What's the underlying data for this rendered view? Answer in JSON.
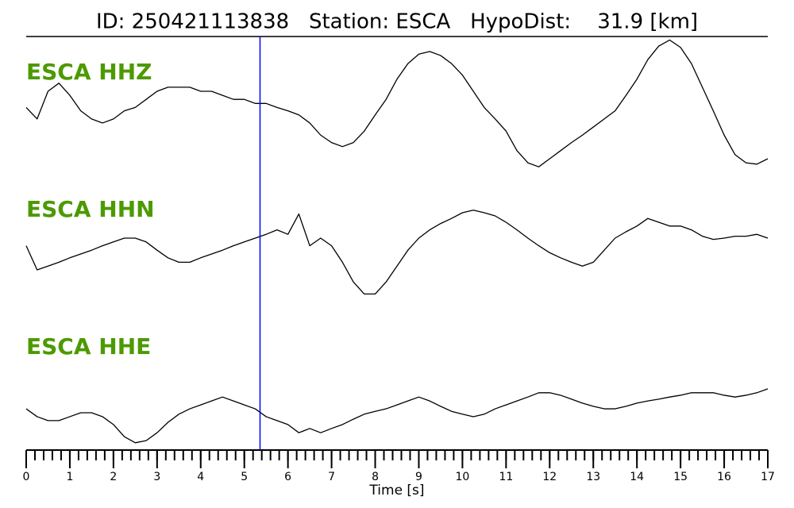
{
  "chart_data": {
    "type": "line",
    "title": "ID: 250421113838   Station: ESCA   HypoDist:    31.9 [km]",
    "xlabel": "Time [s]",
    "xlim": [
      0,
      17
    ],
    "xticks": [
      0,
      1,
      2,
      3,
      4,
      5,
      6,
      7,
      8,
      9,
      10,
      11,
      12,
      13,
      14,
      15,
      16,
      17
    ],
    "xminor": 0.2,
    "marker_line": {
      "x": 5.36,
      "color": "#0000ff"
    },
    "label_color": "#4c9a00",
    "x": [
      0,
      0.25,
      0.5,
      0.75,
      1,
      1.25,
      1.5,
      1.75,
      2,
      2.25,
      2.5,
      2.75,
      3,
      3.25,
      3.5,
      3.75,
      4,
      4.25,
      4.5,
      4.75,
      5,
      5.25,
      5.5,
      5.75,
      6,
      6.25,
      6.5,
      6.75,
      7,
      7.25,
      7.5,
      7.75,
      8,
      8.25,
      8.5,
      8.75,
      9,
      9.25,
      9.5,
      9.75,
      10,
      10.25,
      10.5,
      10.75,
      11,
      11.25,
      11.5,
      11.75,
      12,
      12.25,
      12.5,
      12.75,
      13,
      13.25,
      13.5,
      13.75,
      14,
      14.25,
      14.5,
      14.75,
      15,
      15.25,
      15.5,
      15.75,
      16,
      16.25,
      16.5,
      16.75,
      17
    ],
    "series": [
      {
        "name": "ESCA HHZ",
        "color": "#000000",
        "ylim": [
          -1,
          1
        ],
        "values": [
          -0.04,
          -0.21,
          0.2,
          0.32,
          0.14,
          -0.09,
          -0.21,
          -0.27,
          -0.21,
          -0.09,
          -0.04,
          0.08,
          0.2,
          0.26,
          0.26,
          0.26,
          0.2,
          0.2,
          0.14,
          0.08,
          0.08,
          0.02,
          0.02,
          -0.04,
          -0.09,
          -0.15,
          -0.27,
          -0.45,
          -0.56,
          -0.62,
          -0.56,
          -0.39,
          -0.15,
          0.08,
          0.38,
          0.61,
          0.75,
          0.79,
          0.73,
          0.61,
          0.44,
          0.2,
          -0.04,
          -0.21,
          -0.39,
          -0.68,
          -0.86,
          -0.92,
          -0.8,
          -0.68,
          -0.56,
          -0.45,
          -0.33,
          -0.21,
          -0.09,
          0.14,
          0.38,
          0.67,
          0.87,
          0.96,
          0.85,
          0.61,
          0.26,
          -0.09,
          -0.45,
          -0.74,
          -0.86,
          -0.88,
          -0.8
        ]
      },
      {
        "name": "ESCA HHN",
        "color": "#000000",
        "ylim": [
          -1,
          1
        ],
        "values": [
          0.03,
          -0.35,
          -0.29,
          -0.23,
          -0.16,
          -0.1,
          -0.04,
          0.03,
          0.09,
          0.15,
          0.15,
          0.09,
          -0.04,
          -0.16,
          -0.23,
          -0.23,
          -0.16,
          -0.1,
          -0.04,
          0.03,
          0.09,
          0.15,
          0.21,
          0.28,
          0.21,
          0.53,
          0.03,
          0.15,
          0.03,
          -0.23,
          -0.54,
          -0.73,
          -0.73,
          -0.54,
          -0.29,
          -0.04,
          0.15,
          0.28,
          0.38,
          0.46,
          0.55,
          0.59,
          0.55,
          0.5,
          0.4,
          0.28,
          0.15,
          0.03,
          -0.08,
          -0.16,
          -0.23,
          -0.29,
          -0.23,
          -0.04,
          0.15,
          0.25,
          0.34,
          0.46,
          0.4,
          0.34,
          0.34,
          0.28,
          0.18,
          0.13,
          0.15,
          0.18,
          0.18,
          0.21,
          0.15
        ]
      },
      {
        "name": "ESCA HHE",
        "color": "#000000",
        "ylim": [
          -1,
          1
        ],
        "values": [
          0.11,
          -0.11,
          -0.22,
          -0.22,
          -0.11,
          0,
          0,
          -0.11,
          -0.33,
          -0.67,
          -0.84,
          -0.78,
          -0.56,
          -0.27,
          -0.04,
          0.11,
          0.22,
          0.33,
          0.44,
          0.33,
          0.22,
          0.11,
          -0.11,
          -0.22,
          -0.33,
          -0.56,
          -0.44,
          -0.56,
          -0.44,
          -0.33,
          -0.18,
          -0.04,
          0.04,
          0.11,
          0.22,
          0.33,
          0.44,
          0.33,
          0.18,
          0.04,
          -0.04,
          -0.11,
          -0.04,
          0.11,
          0.22,
          0.33,
          0.44,
          0.56,
          0.56,
          0.49,
          0.38,
          0.27,
          0.18,
          0.11,
          0.11,
          0.18,
          0.27,
          0.33,
          0.38,
          0.44,
          0.49,
          0.56,
          0.56,
          0.56,
          0.49,
          0.44,
          0.49,
          0.56,
          0.67
        ]
      }
    ]
  }
}
